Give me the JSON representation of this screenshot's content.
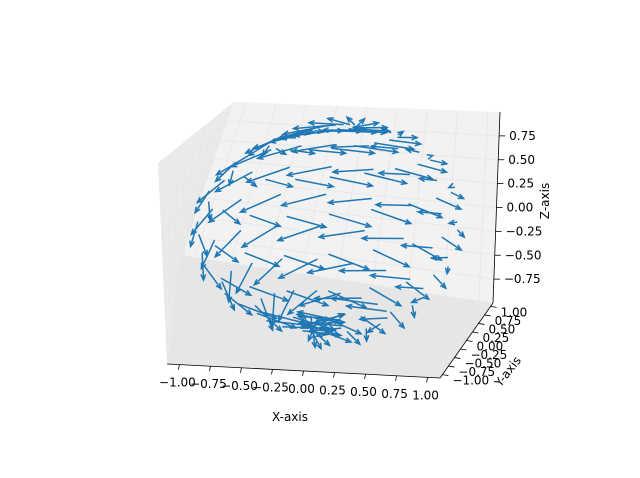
{
  "chart_data": {
    "type": "quiver3d",
    "xlabel": "X-axis",
    "ylabel": "Y-axis",
    "zlabel": "Z-axis",
    "xlim": [
      -1.1,
      1.1
    ],
    "ylim": [
      -1.1,
      1.1
    ],
    "zlim": [
      -1.0,
      1.0
    ],
    "x_ticks": [
      "−1.00",
      "−0.75",
      "−0.50",
      "−0.25",
      "0.00",
      "0.25",
      "0.50",
      "0.75",
      "1.00"
    ],
    "y_ticks": [
      "−1.00",
      "−0.75",
      "−0.50",
      "−0.25",
      "0.00",
      "0.25",
      "0.50",
      "0.75",
      "1.00"
    ],
    "z_ticks": [
      "−0.75",
      "−0.50",
      "−0.25",
      "0.00",
      "0.25",
      "0.50",
      "0.75"
    ],
    "x_tick_values": [
      -1.0,
      -0.75,
      -0.5,
      -0.25,
      0.0,
      0.25,
      0.5,
      0.75,
      1.0
    ],
    "y_tick_values": [
      -1.0,
      -0.75,
      -0.5,
      -0.25,
      0.0,
      0.25,
      0.5,
      0.75,
      1.0
    ],
    "z_tick_values": [
      -0.75,
      -0.5,
      -0.25,
      0.0,
      0.25,
      0.5,
      0.75
    ],
    "grid": true,
    "color": "#1f77b4",
    "field": "vectors on sphere: (x, y, z) -> (-y, x, 0) scaled",
    "theta_samples": 9,
    "phi_samples": 18,
    "radius": 1.0,
    "arrow_length": 0.35
  }
}
